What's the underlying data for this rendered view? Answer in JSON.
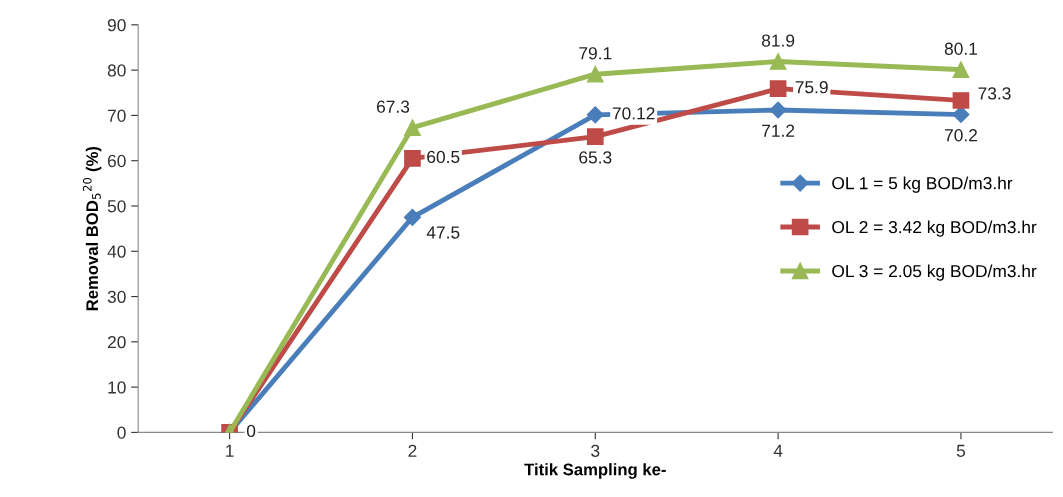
{
  "chart_data": {
    "type": "line",
    "xlabel": "Titik Sampling ke-",
    "ylabel": "Removal BOD$_{5}$$^{20}$ (%)",
    "categories": [
      "1",
      "2",
      "3",
      "4",
      "5"
    ],
    "series": [
      {
        "name": "OL 1 = 5 kg BOD/m3.hr",
        "color": "#4a7ebb",
        "marker": "diamond",
        "values": [
          0,
          47.5,
          70.12,
          71.2,
          70.2
        ],
        "value_labels": [
          "0",
          "47.5",
          "70.12",
          "71.2",
          "70.2"
        ]
      },
      {
        "name": "OL 2 = 3.42 kg BOD/m3.hr",
        "color": "#be4b48",
        "marker": "square",
        "values": [
          0,
          60.5,
          65.3,
          75.9,
          73.3
        ],
        "value_labels": [
          null,
          "60.5",
          "65.3",
          "75.9",
          "73.3"
        ]
      },
      {
        "name": "OL 3 = 2.05 kg BOD/m3.hr",
        "color": "#98b954",
        "marker": "triangle",
        "values": [
          0,
          67.3,
          79.1,
          81.9,
          80.1
        ],
        "value_labels": [
          null,
          "67.3",
          "79.1",
          "81.9",
          "80.1"
        ]
      }
    ],
    "ylim": [
      0,
      90
    ],
    "yticks": [
      0,
      10,
      20,
      30,
      40,
      50,
      60,
      70,
      80,
      90
    ],
    "grid": false,
    "legend": "right"
  }
}
